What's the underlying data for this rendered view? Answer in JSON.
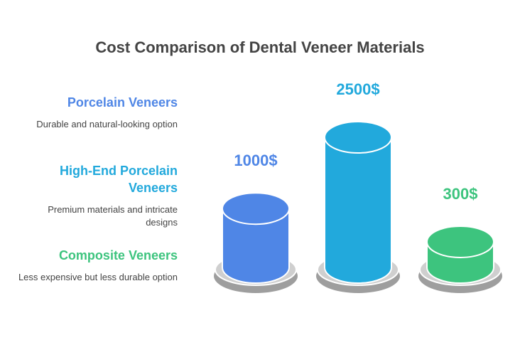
{
  "chart_data": {
    "type": "cylinder",
    "title": "Cost Comparison of Dental Veneer Materials",
    "categories": [
      "Porcelain Veneers",
      "High-End Porcelain Veneers",
      "Composite Veneers"
    ],
    "descriptions": [
      "Durable and natural-looking option",
      "Premium materials and intricate designs",
      "Less expensive but less durable option"
    ],
    "values": [
      1000,
      2500,
      300
    ],
    "value_labels": [
      "1000$",
      "2500$",
      "300$"
    ],
    "colors": [
      "#4f86e6",
      "#22a9dc",
      "#3dc47e"
    ]
  }
}
